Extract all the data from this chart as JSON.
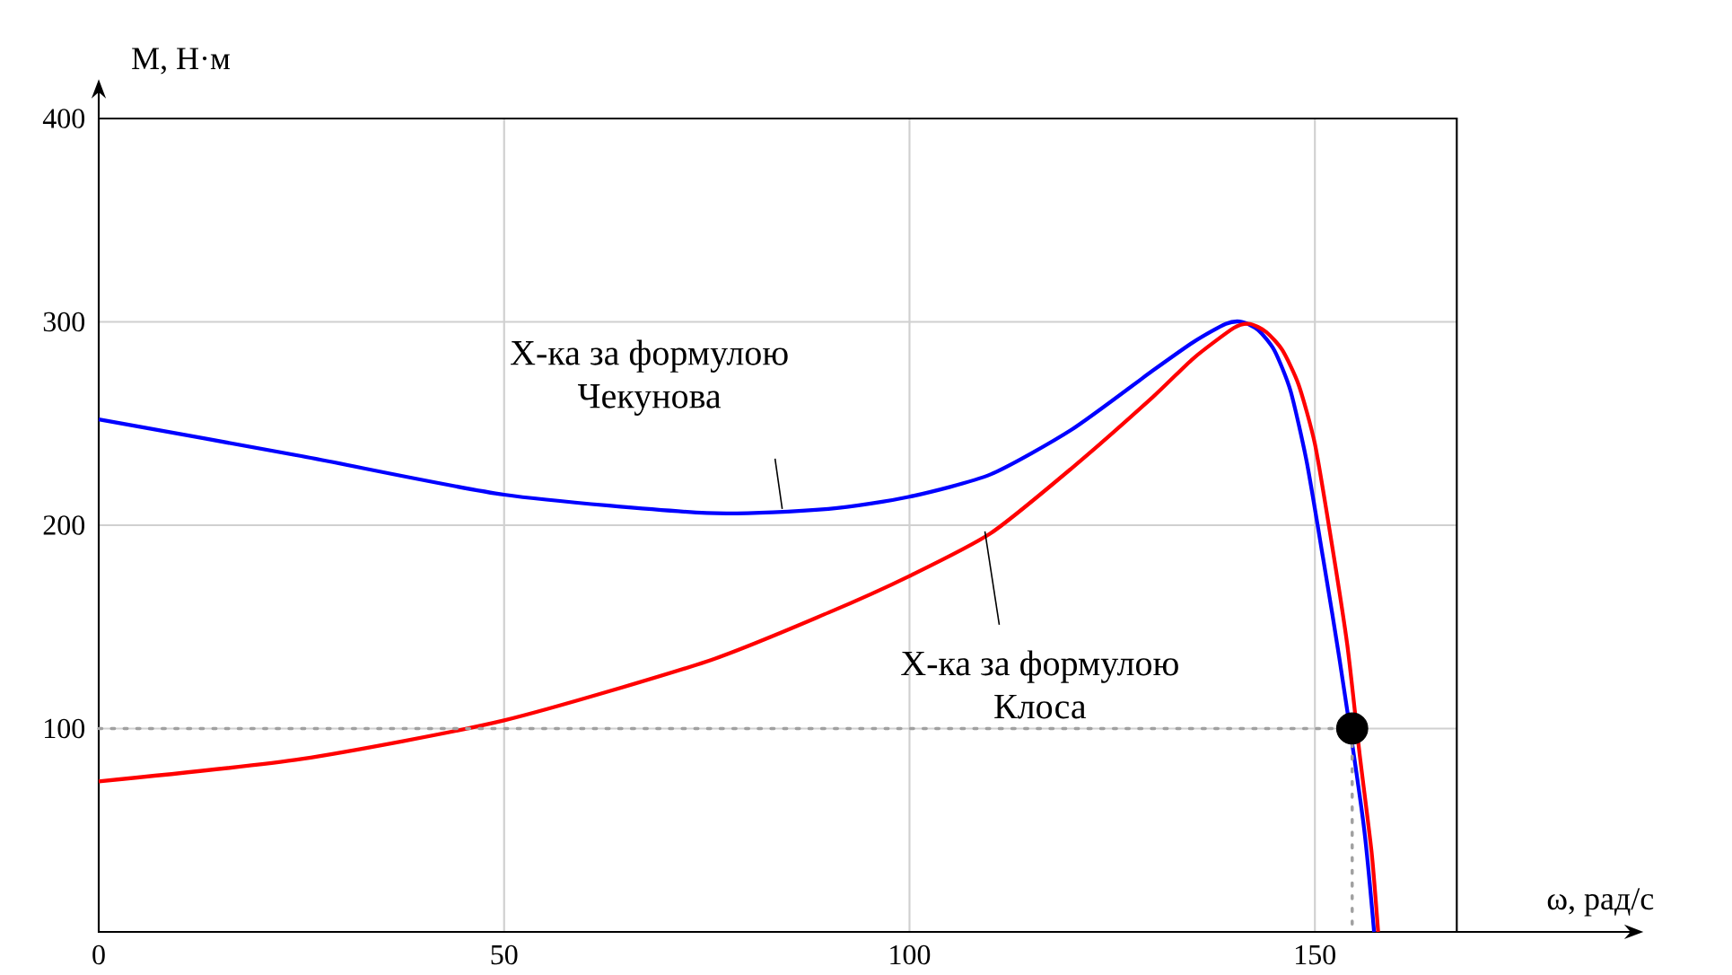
{
  "chart_data": {
    "type": "line",
    "xlabel": "ω, рад/с",
    "ylabel": "М, Н·м",
    "xlim": [
      0,
      167.5
    ],
    "ylim": [
      0,
      400
    ],
    "xticks": [
      0,
      50,
      100,
      150
    ],
    "yticks": [
      100,
      200,
      300,
      400
    ],
    "grid": true,
    "series": [
      {
        "color": "#0000ff",
        "marker": "none",
        "line_style": "solid",
        "x": [
          0,
          25,
          50,
          75,
          90,
          100,
          110,
          120,
          130,
          135,
          139,
          141,
          143,
          145,
          147,
          149,
          151,
          153,
          156,
          157.3
        ],
        "values": [
          252,
          234,
          215,
          206,
          208,
          214,
          225,
          247,
          276,
          290,
          299,
          300,
          296,
          286,
          266,
          231,
          184,
          135,
          53,
          0
        ]
      },
      {
        "color": "#ff0000",
        "marker": "none",
        "line_style": "solid",
        "x": [
          0,
          25,
          50,
          75,
          90,
          100,
          110,
          120,
          130,
          135,
          140,
          142,
          144,
          146,
          148,
          150,
          152,
          154,
          155.5,
          157,
          157.8
        ],
        "values": [
          74,
          85,
          104,
          133,
          157,
          175,
          196,
          228,
          263,
          282,
          297,
          299,
          295,
          286,
          269,
          240,
          193,
          141,
          88,
          39,
          0
        ]
      },
      {
        "type": "line",
        "color": "#a0a0a0",
        "marker": "none",
        "line_style": "dotted",
        "x": [
          0,
          154.6,
          154.6
        ],
        "values": [
          100,
          100,
          0
        ]
      },
      {
        "type": "scatter",
        "color": "#000000",
        "marker": "circle",
        "x": [
          154.6
        ],
        "values": [
          100
        ]
      }
    ],
    "annotations": [
      {
        "text": "Х-ка за формулою Чекунова",
        "x": 84.3,
        "y": 208
      },
      {
        "text": "Х-ка за формулою Клоса",
        "x": 109.3,
        "y": 197
      }
    ]
  }
}
